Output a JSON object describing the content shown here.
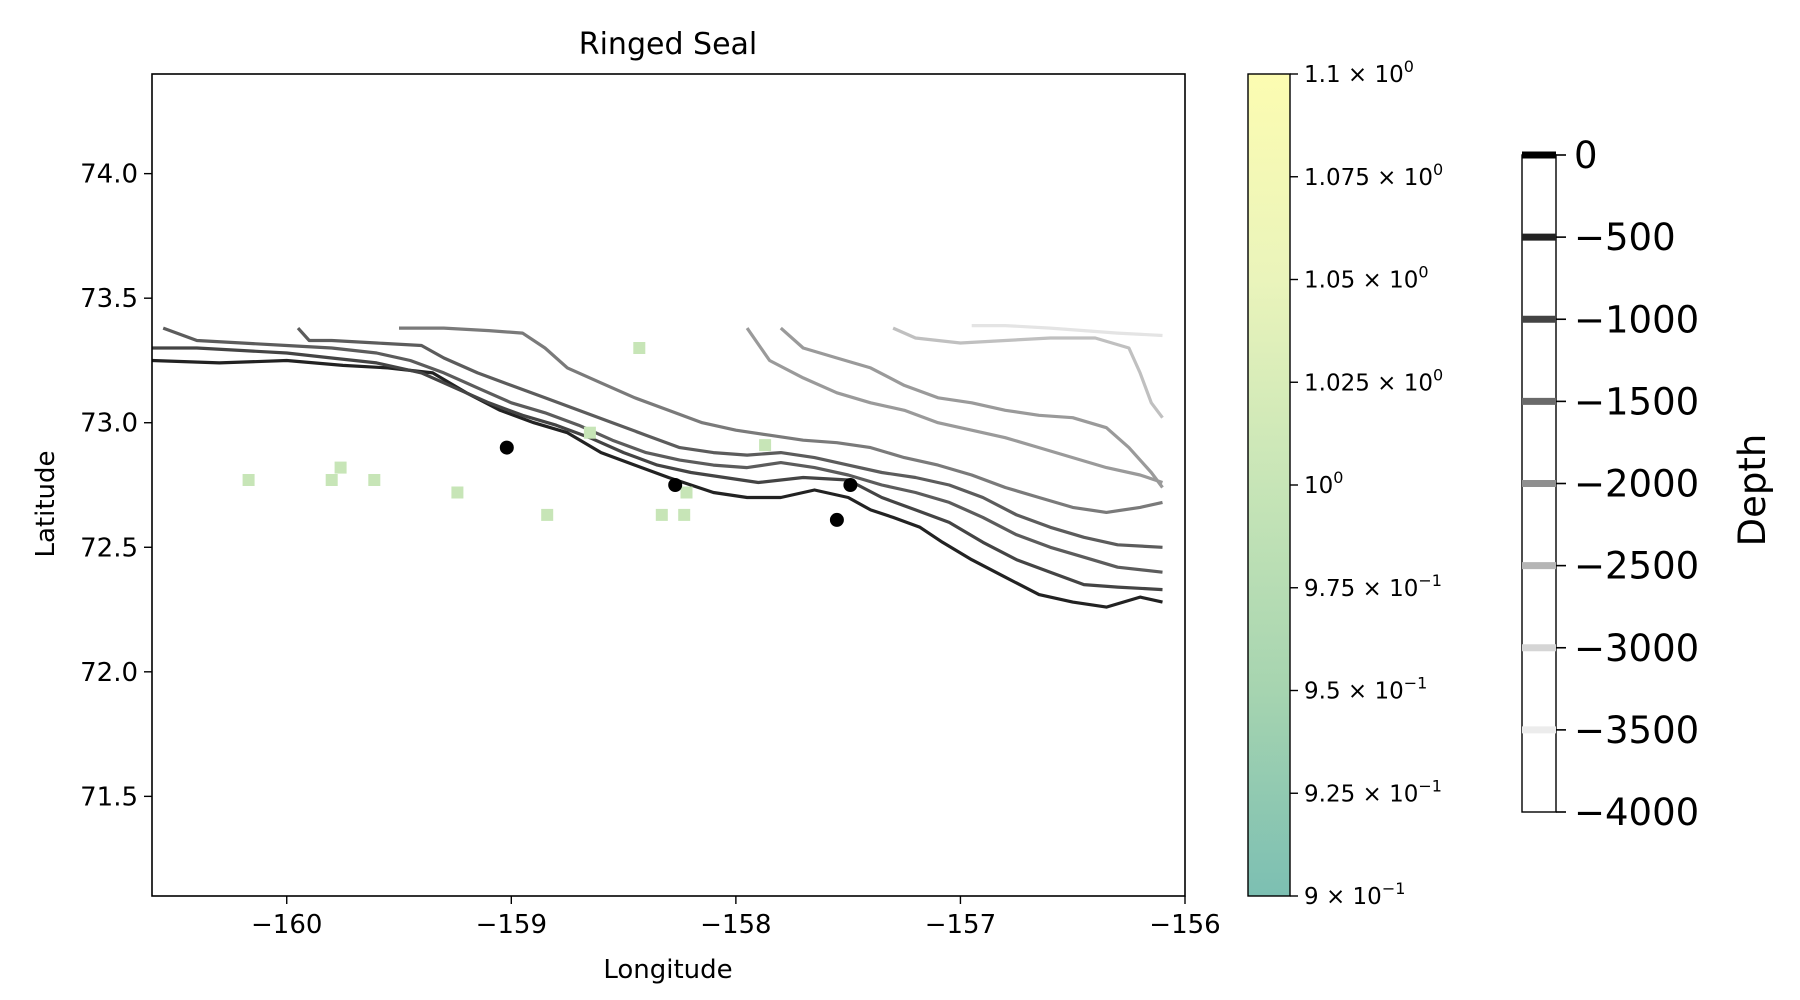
{
  "chart_data": {
    "type": "scatter",
    "title": "Ringed Seal",
    "xlabel": "Longitude",
    "ylabel": "Latitude",
    "xlim": [
      -160.6,
      -156.0
    ],
    "ylim": [
      71.1,
      74.4
    ],
    "x_ticks": [
      -160,
      -159,
      -158,
      -157,
      -156
    ],
    "x_tick_labels": [
      "−160",
      "−159",
      "−158",
      "−157",
      "−156"
    ],
    "y_ticks": [
      71.5,
      72.0,
      72.5,
      73.0,
      73.5,
      74.0
    ],
    "y_tick_labels": [
      "71.5",
      "72.0",
      "72.5",
      "73.0",
      "73.5",
      "74.0"
    ],
    "sightings": [
      {
        "lon": -159.02,
        "lat": 72.9
      },
      {
        "lon": -158.27,
        "lat": 72.75
      },
      {
        "lon": -157.55,
        "lat": 72.61
      },
      {
        "lon": -157.49,
        "lat": 72.75
      }
    ],
    "density_cells": {
      "value": 1.0,
      "cells": [
        {
          "lon": -160.17,
          "lat": 72.77
        },
        {
          "lon": -159.8,
          "lat": 72.77
        },
        {
          "lon": -159.76,
          "lat": 72.82
        },
        {
          "lon": -159.61,
          "lat": 72.77
        },
        {
          "lon": -159.24,
          "lat": 72.72
        },
        {
          "lon": -158.84,
          "lat": 72.63
        },
        {
          "lon": -158.65,
          "lat": 72.96
        },
        {
          "lon": -158.43,
          "lat": 73.3
        },
        {
          "lon": -158.33,
          "lat": 72.63
        },
        {
          "lon": -158.23,
          "lat": 72.63
        },
        {
          "lon": -158.22,
          "lat": 72.72
        },
        {
          "lon": -157.87,
          "lat": 72.91
        }
      ]
    },
    "colorbar": {
      "range": [
        0.9,
        1.1
      ],
      "ticks": [
        {
          "value": 0.9,
          "mantissa": "9",
          "exponent": "−1"
        },
        {
          "value": 0.925,
          "mantissa": "9.25",
          "exponent": "−1"
        },
        {
          "value": 0.95,
          "mantissa": "9.5",
          "exponent": "−1"
        },
        {
          "value": 0.975,
          "mantissa": "9.75",
          "exponent": "−1"
        },
        {
          "value": 1.0,
          "mantissa": "",
          "exponent": "0"
        },
        {
          "value": 1.025,
          "mantissa": "1.025",
          "exponent": "0"
        },
        {
          "value": 1.05,
          "mantissa": "1.05",
          "exponent": "0"
        },
        {
          "value": 1.075,
          "mantissa": "1.075",
          "exponent": "0"
        },
        {
          "value": 1.1,
          "mantissa": "1.1",
          "exponent": "0"
        }
      ],
      "colors": [
        "#7cbfb2",
        "#a6d4b0",
        "#c7e5b7",
        "#eaf4bb",
        "#fcfcb1"
      ]
    },
    "depth_legend": {
      "label": "Depth",
      "range": [
        -4000,
        0
      ],
      "levels": [
        {
          "value": 0,
          "label": "0",
          "color": "#000000"
        },
        {
          "value": -500,
          "label": "−500",
          "color": "#222222"
        },
        {
          "value": -1000,
          "label": "−1000",
          "color": "#444444"
        },
        {
          "value": -1500,
          "label": "−1500",
          "color": "#6a6a6a"
        },
        {
          "value": -2000,
          "label": "−2000",
          "color": "#8f8f8f"
        },
        {
          "value": -2500,
          "label": "−2500",
          "color": "#b5b5b5"
        },
        {
          "value": -3000,
          "label": "−3000",
          "color": "#d5d5d5"
        },
        {
          "value": -3500,
          "label": "−3500",
          "color": "#ececec"
        },
        {
          "value": -4000,
          "label": "−4000",
          "color": "#ffffff"
        }
      ]
    },
    "contours": [
      {
        "depth": -500,
        "color": "#222222",
        "points": [
          [
            -160.6,
            73.25
          ],
          [
            -160.3,
            73.24
          ],
          [
            -160.0,
            73.25
          ],
          [
            -159.75,
            73.23
          ],
          [
            -159.55,
            73.22
          ],
          [
            -159.35,
            73.2
          ],
          [
            -159.2,
            73.12
          ],
          [
            -159.05,
            73.05
          ],
          [
            -158.9,
            73.0
          ],
          [
            -158.75,
            72.96
          ],
          [
            -158.6,
            72.88
          ],
          [
            -158.45,
            72.83
          ],
          [
            -158.3,
            72.78
          ],
          [
            -158.1,
            72.72
          ],
          [
            -157.95,
            72.7
          ],
          [
            -157.8,
            72.7
          ],
          [
            -157.65,
            72.73
          ],
          [
            -157.5,
            72.7
          ],
          [
            -157.4,
            72.65
          ],
          [
            -157.3,
            72.62
          ],
          [
            -157.18,
            72.58
          ],
          [
            -157.08,
            72.52
          ],
          [
            -156.95,
            72.45
          ],
          [
            -156.8,
            72.38
          ],
          [
            -156.65,
            72.31
          ],
          [
            -156.5,
            72.28
          ],
          [
            -156.35,
            72.26
          ],
          [
            -156.2,
            72.3
          ],
          [
            -156.1,
            72.28
          ]
        ]
      },
      {
        "depth": -1000,
        "color": "#444444",
        "points": [
          [
            -160.6,
            73.3
          ],
          [
            -160.4,
            73.3
          ],
          [
            -160.2,
            73.29
          ],
          [
            -160.0,
            73.28
          ],
          [
            -159.8,
            73.26
          ],
          [
            -159.6,
            73.24
          ],
          [
            -159.4,
            73.2
          ],
          [
            -159.25,
            73.14
          ],
          [
            -159.1,
            73.08
          ],
          [
            -158.95,
            73.03
          ],
          [
            -158.8,
            72.99
          ],
          [
            -158.65,
            72.94
          ],
          [
            -158.5,
            72.88
          ],
          [
            -158.35,
            72.83
          ],
          [
            -158.2,
            72.8
          ],
          [
            -158.05,
            72.78
          ],
          [
            -157.9,
            72.76
          ],
          [
            -157.7,
            72.78
          ],
          [
            -157.5,
            72.77
          ],
          [
            -157.35,
            72.7
          ],
          [
            -157.2,
            72.65
          ],
          [
            -157.05,
            72.6
          ],
          [
            -156.9,
            72.52
          ],
          [
            -156.75,
            72.45
          ],
          [
            -156.6,
            72.4
          ],
          [
            -156.45,
            72.35
          ],
          [
            -156.3,
            72.34
          ],
          [
            -156.1,
            72.33
          ]
        ]
      },
      {
        "depth": -1500,
        "color": "#5c5c5c",
        "points": [
          [
            -160.55,
            73.38
          ],
          [
            -160.4,
            73.33
          ],
          [
            -160.2,
            73.32
          ],
          [
            -160.0,
            73.31
          ],
          [
            -159.8,
            73.3
          ],
          [
            -159.6,
            73.28
          ],
          [
            -159.45,
            73.25
          ],
          [
            -159.3,
            73.2
          ],
          [
            -159.15,
            73.14
          ],
          [
            -159.0,
            73.08
          ],
          [
            -158.85,
            73.04
          ],
          [
            -158.7,
            72.99
          ],
          [
            -158.55,
            72.93
          ],
          [
            -158.4,
            72.88
          ],
          [
            -158.25,
            72.85
          ],
          [
            -158.1,
            72.83
          ],
          [
            -157.95,
            72.82
          ],
          [
            -157.8,
            72.84
          ],
          [
            -157.65,
            72.82
          ],
          [
            -157.5,
            72.79
          ],
          [
            -157.35,
            72.75
          ],
          [
            -157.2,
            72.72
          ],
          [
            -157.05,
            72.68
          ],
          [
            -156.9,
            72.62
          ],
          [
            -156.75,
            72.55
          ],
          [
            -156.6,
            72.5
          ],
          [
            -156.45,
            72.46
          ],
          [
            -156.3,
            72.42
          ],
          [
            -156.1,
            72.4
          ]
        ]
      },
      {
        "depth": -1500,
        "color": "#5c5c5c",
        "points": [
          [
            -159.95,
            73.38
          ],
          [
            -159.9,
            73.33
          ],
          [
            -159.8,
            73.33
          ],
          [
            -159.6,
            73.32
          ],
          [
            -159.4,
            73.31
          ],
          [
            -159.3,
            73.26
          ],
          [
            -159.15,
            73.2
          ],
          [
            -159.0,
            73.15
          ],
          [
            -158.85,
            73.1
          ],
          [
            -158.7,
            73.05
          ],
          [
            -158.55,
            73.0
          ],
          [
            -158.4,
            72.95
          ],
          [
            -158.25,
            72.9
          ],
          [
            -158.1,
            72.88
          ],
          [
            -157.95,
            72.87
          ],
          [
            -157.8,
            72.88
          ],
          [
            -157.65,
            72.86
          ],
          [
            -157.5,
            72.83
          ],
          [
            -157.35,
            72.8
          ],
          [
            -157.2,
            72.78
          ],
          [
            -157.05,
            72.75
          ],
          [
            -156.9,
            72.7
          ],
          [
            -156.75,
            72.63
          ],
          [
            -156.6,
            72.58
          ],
          [
            -156.45,
            72.54
          ],
          [
            -156.3,
            72.51
          ],
          [
            -156.1,
            72.5
          ]
        ]
      },
      {
        "depth": -2000,
        "color": "#7a7a7a",
        "points": [
          [
            -159.5,
            73.38
          ],
          [
            -159.3,
            73.38
          ],
          [
            -159.1,
            73.37
          ],
          [
            -158.95,
            73.36
          ],
          [
            -158.85,
            73.3
          ],
          [
            -158.75,
            73.22
          ],
          [
            -158.6,
            73.16
          ],
          [
            -158.45,
            73.1
          ],
          [
            -158.3,
            73.05
          ],
          [
            -158.15,
            73.0
          ],
          [
            -158.0,
            72.97
          ],
          [
            -157.85,
            72.95
          ],
          [
            -157.7,
            72.93
          ],
          [
            -157.55,
            72.92
          ],
          [
            -157.4,
            72.9
          ],
          [
            -157.25,
            72.86
          ],
          [
            -157.1,
            72.83
          ],
          [
            -156.95,
            72.79
          ],
          [
            -156.8,
            72.74
          ],
          [
            -156.65,
            72.7
          ],
          [
            -156.5,
            72.66
          ],
          [
            -156.35,
            72.64
          ],
          [
            -156.2,
            72.66
          ],
          [
            -156.1,
            72.68
          ]
        ]
      },
      {
        "depth": -2500,
        "color": "#9a9a9a",
        "points": [
          [
            -157.8,
            73.38
          ],
          [
            -157.7,
            73.3
          ],
          [
            -157.55,
            73.26
          ],
          [
            -157.4,
            73.22
          ],
          [
            -157.25,
            73.15
          ],
          [
            -157.1,
            73.1
          ],
          [
            -156.95,
            73.08
          ],
          [
            -156.8,
            73.05
          ],
          [
            -156.65,
            73.03
          ],
          [
            -156.5,
            73.02
          ],
          [
            -156.35,
            72.98
          ],
          [
            -156.25,
            72.9
          ],
          [
            -156.15,
            72.8
          ],
          [
            -156.1,
            72.74
          ]
        ]
      },
      {
        "depth": -2500,
        "color": "#9a9a9a",
        "points": [
          [
            -157.95,
            73.38
          ],
          [
            -157.85,
            73.25
          ],
          [
            -157.7,
            73.18
          ],
          [
            -157.55,
            73.12
          ],
          [
            -157.4,
            73.08
          ],
          [
            -157.25,
            73.05
          ],
          [
            -157.1,
            73.0
          ],
          [
            -156.95,
            72.97
          ],
          [
            -156.8,
            72.94
          ],
          [
            -156.65,
            72.9
          ],
          [
            -156.5,
            72.86
          ],
          [
            -156.35,
            72.82
          ],
          [
            -156.2,
            72.79
          ],
          [
            -156.1,
            72.76
          ]
        ]
      },
      {
        "depth": -3000,
        "color": "#c0c0c0",
        "points": [
          [
            -157.3,
            73.38
          ],
          [
            -157.2,
            73.34
          ],
          [
            -157.0,
            73.32
          ],
          [
            -156.8,
            73.33
          ],
          [
            -156.6,
            73.34
          ],
          [
            -156.4,
            73.34
          ],
          [
            -156.25,
            73.3
          ],
          [
            -156.2,
            73.2
          ],
          [
            -156.15,
            73.08
          ],
          [
            -156.1,
            73.02
          ]
        ]
      },
      {
        "depth": -3500,
        "color": "#e4e4e4",
        "points": [
          [
            -156.95,
            73.39
          ],
          [
            -156.8,
            73.39
          ],
          [
            -156.6,
            73.38
          ],
          [
            -156.45,
            73.37
          ],
          [
            -156.3,
            73.36
          ],
          [
            -156.1,
            73.35
          ]
        ]
      }
    ]
  }
}
